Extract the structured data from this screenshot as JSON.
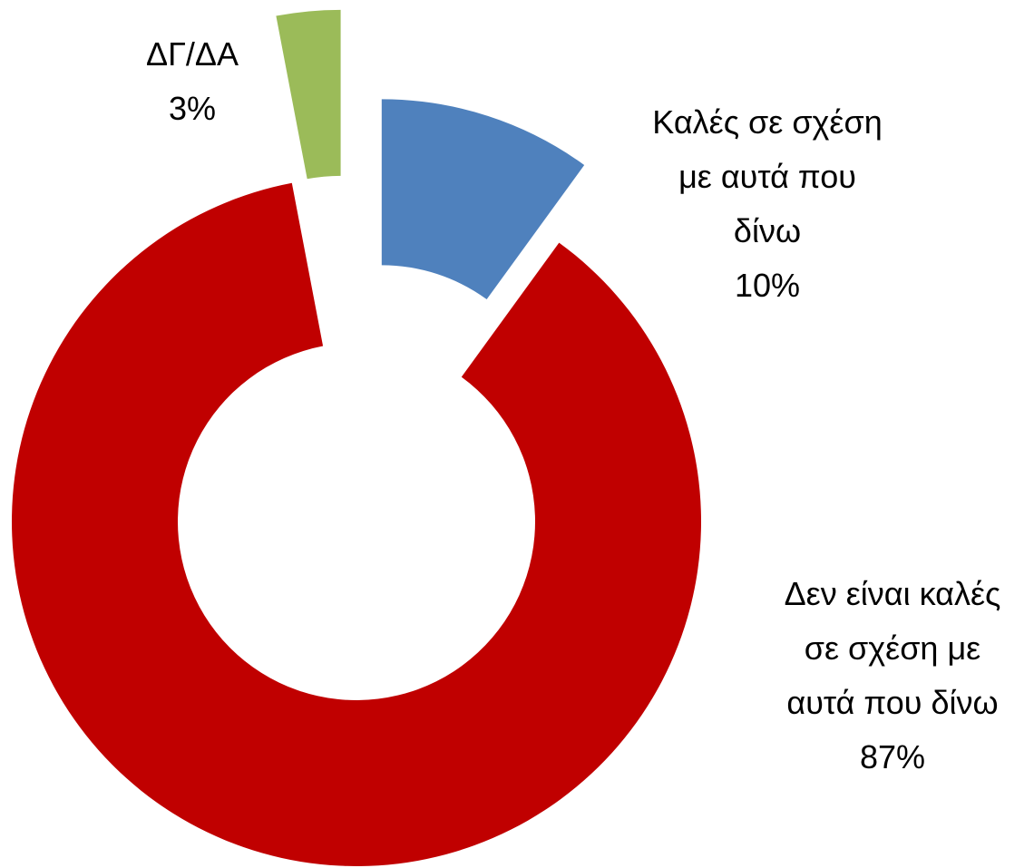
{
  "chart_data": {
    "type": "donut",
    "categories": [
      "Καλές σε σχέση με αυτά που δίνω",
      "Δεν είναι καλές σε σχέση με αυτά που δίνω",
      "ΔΓ/ΔΑ"
    ],
    "values": [
      10,
      87,
      3
    ],
    "value_labels": [
      "10%",
      "87%",
      "3%"
    ],
    "colors": [
      "#4f81bd",
      "#c00000",
      "#9bbb59"
    ]
  }
}
